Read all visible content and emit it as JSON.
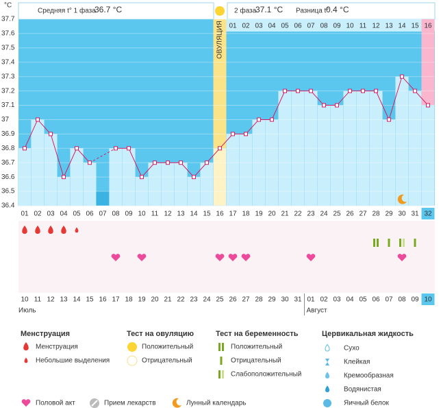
{
  "header": {
    "y_unit": "°C",
    "phase1_label": "Средняя t° 1 фаза",
    "phase1_value": "36.7 °C",
    "phase2_label": "2 фаза",
    "phase2_value": "37.1 °C",
    "diff_label": "Разница t°",
    "diff_value": "0.4 °C"
  },
  "chart_data": {
    "type": "line",
    "categories": [
      "01",
      "02",
      "03",
      "04",
      "05",
      "06",
      "07",
      "08",
      "09",
      "10",
      "11",
      "12",
      "13",
      "14",
      "15",
      "16",
      "17",
      "18",
      "19",
      "20",
      "21",
      "22",
      "23",
      "24",
      "25",
      "26",
      "27",
      "28",
      "29",
      "30",
      "31",
      "32"
    ],
    "values": [
      36.8,
      37.0,
      36.9,
      36.6,
      36.8,
      36.7,
      null,
      36.8,
      36.8,
      36.6,
      36.7,
      36.7,
      36.7,
      36.6,
      36.7,
      36.8,
      36.9,
      36.9,
      37.0,
      37.0,
      37.2,
      37.2,
      37.2,
      37.1,
      37.1,
      37.2,
      37.2,
      37.2,
      37.0,
      37.3,
      37.2,
      37.1
    ],
    "color": "#d81b60",
    "ylim": [
      36.4,
      37.7
    ],
    "yticks": [
      36.4,
      36.5,
      36.6,
      36.7,
      36.8,
      36.9,
      37,
      37.1,
      37.2,
      37.3,
      37.4,
      37.5,
      37.6,
      37.7
    ],
    "grid": true,
    "ovulation_day": "16",
    "ovulation_label": "ОВУЛЯЦИЯ",
    "today": "32",
    "phase2_days": [
      "01",
      "02",
      "03",
      "04",
      "05",
      "06",
      "07",
      "08",
      "09",
      "10",
      "11",
      "12",
      "13",
      "14",
      "15",
      "16"
    ]
  },
  "calendar": {
    "dates": [
      {
        "label": "10",
        "weekend": false
      },
      {
        "label": "11",
        "weekend": true
      },
      {
        "label": "12",
        "weekend": true
      },
      {
        "label": "13",
        "weekend": false
      },
      {
        "label": "14",
        "weekend": false
      },
      {
        "label": "15",
        "weekend": false
      },
      {
        "label": "16",
        "weekend": false
      },
      {
        "label": "17",
        "weekend": false
      },
      {
        "label": "18",
        "weekend": true
      },
      {
        "label": "19",
        "weekend": true
      },
      {
        "label": "20",
        "weekend": false
      },
      {
        "label": "21",
        "weekend": false
      },
      {
        "label": "22",
        "weekend": false
      },
      {
        "label": "23",
        "weekend": false
      },
      {
        "label": "24",
        "weekend": false
      },
      {
        "label": "25",
        "weekend": true
      },
      {
        "label": "26",
        "weekend": true
      },
      {
        "label": "27",
        "weekend": false
      },
      {
        "label": "28",
        "weekend": false
      },
      {
        "label": "29",
        "weekend": false
      },
      {
        "label": "30",
        "weekend": false
      },
      {
        "label": "31",
        "weekend": false
      },
      {
        "label": "01",
        "weekend": true
      },
      {
        "label": "02",
        "weekend": true
      },
      {
        "label": "03",
        "weekend": false
      },
      {
        "label": "04",
        "weekend": false
      },
      {
        "label": "05",
        "weekend": false
      },
      {
        "label": "06",
        "weekend": false
      },
      {
        "label": "07",
        "weekend": false
      },
      {
        "label": "08",
        "weekend": true
      },
      {
        "label": "09",
        "weekend": true
      },
      {
        "label": "10",
        "weekend": false
      }
    ],
    "months": [
      {
        "label": "Июль",
        "day": "01"
      },
      {
        "label": "Август",
        "day": "23"
      }
    ]
  },
  "events": {
    "menstruation": [
      {
        "day": "01",
        "amount": "heavy"
      },
      {
        "day": "02",
        "amount": "heavy"
      },
      {
        "day": "03",
        "amount": "heavy"
      },
      {
        "day": "04",
        "amount": "heavy"
      },
      {
        "day": "05",
        "amount": "light"
      }
    ],
    "intercourse": [
      "08",
      "10",
      "16",
      "17",
      "18",
      "23",
      "30"
    ],
    "pregnancy_tests": [
      {
        "day": "28",
        "result": "positive"
      },
      {
        "day": "29",
        "result": "negative"
      },
      {
        "day": "30",
        "result": "weak"
      },
      {
        "day": "31",
        "result": "negative"
      }
    ],
    "lunar": [
      "30"
    ]
  },
  "legend": {
    "sections": [
      {
        "title": "Менструация",
        "items": [
          {
            "label": "Менструация",
            "icon": "heavy"
          },
          {
            "label": "Небольшие выделения",
            "icon": "light"
          }
        ]
      },
      {
        "title": "Тест на овуляцию",
        "items": [
          {
            "label": "Положительный",
            "icon": "sun"
          },
          {
            "label": "Отрицательный",
            "icon": "sun-empty"
          }
        ]
      },
      {
        "title": "Тест на беременность",
        "items": [
          {
            "label": "Положительный",
            "icon": "positive"
          },
          {
            "label": "Отрицательный",
            "icon": "negative"
          },
          {
            "label": "Слабоположительный",
            "icon": "weak"
          }
        ]
      },
      {
        "title": "Цервикальная жидкость",
        "items": [
          {
            "label": "Сухо",
            "icon": "dry"
          },
          {
            "label": "Клейкая",
            "icon": "sticky"
          },
          {
            "label": "Кремообразная",
            "icon": "creamy"
          },
          {
            "label": "Водянистая",
            "icon": "watery"
          },
          {
            "label": "Яичный белок",
            "icon": "egg"
          }
        ]
      }
    ],
    "bottom": [
      {
        "label": "Половой акт",
        "icon": "heart"
      },
      {
        "label": "Прием лекарств",
        "icon": "pill"
      },
      {
        "label": "Лунный календарь",
        "icon": "moon"
      }
    ]
  }
}
